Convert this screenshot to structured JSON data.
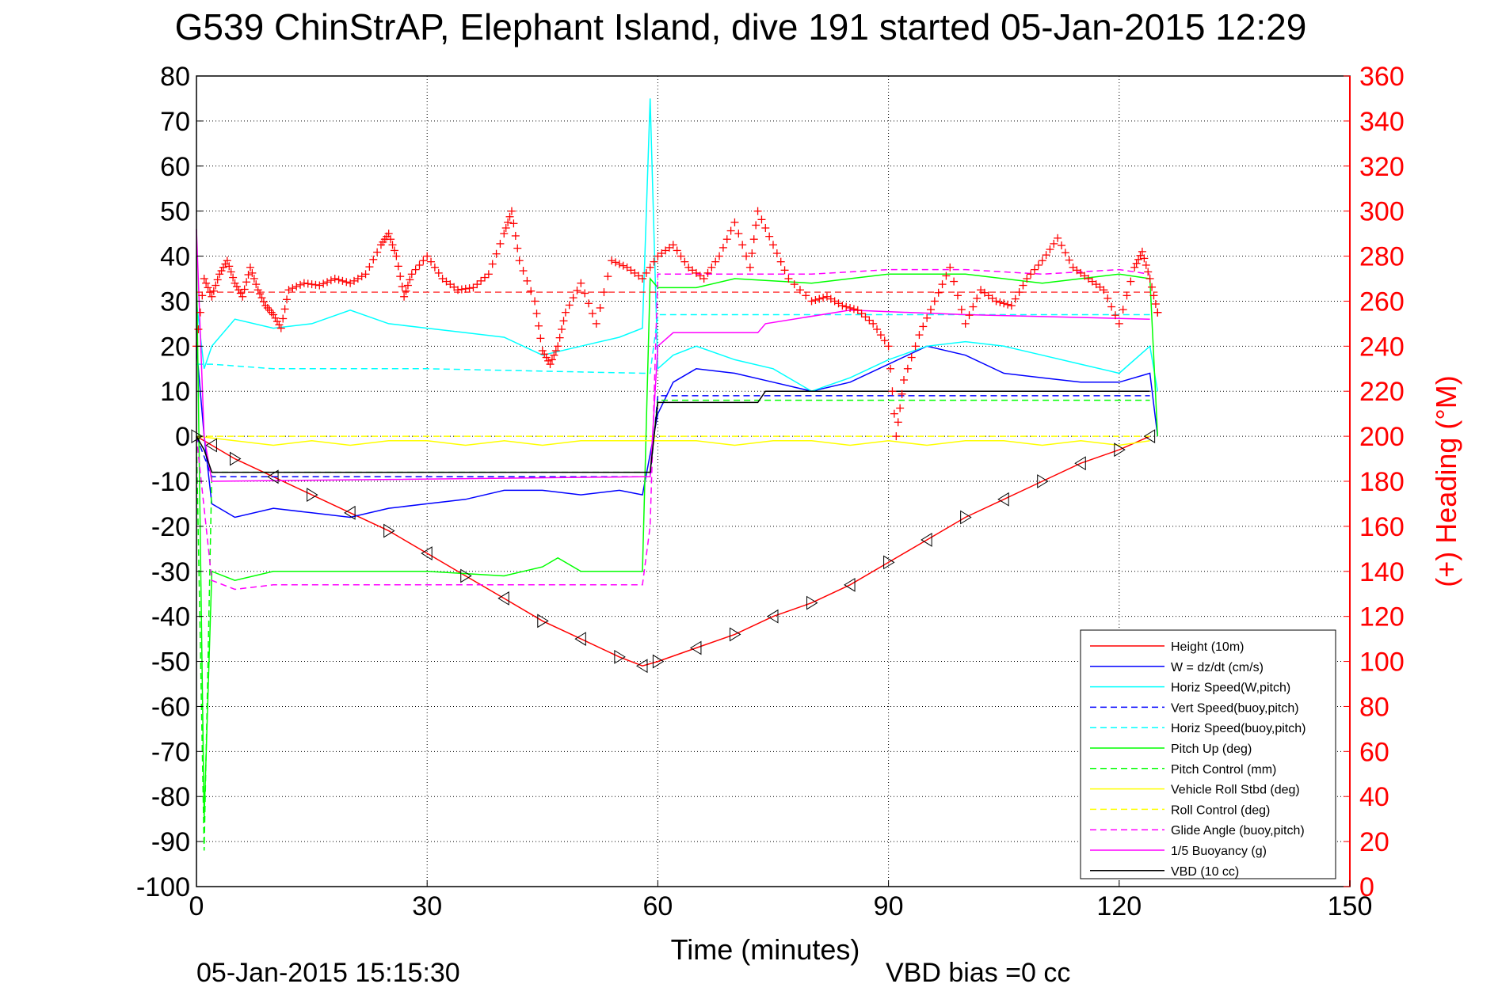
{
  "chart_data": {
    "type": "line",
    "title": "G539 ChinStrAP, Elephant Island, dive 191 started 05-Jan-2015 12:29",
    "xlabel": "Time (minutes)",
    "ylabel_right": "(+) Heading (°M)",
    "footer_left": "05-Jan-2015 15:15:30",
    "footer_right": "VBD bias =0 cc",
    "xlim": [
      0,
      150
    ],
    "ylim": [
      -100,
      80
    ],
    "ylim_right": [
      0,
      360
    ],
    "xticks": [
      "0",
      "30",
      "60",
      "90",
      "120",
      "150"
    ],
    "yticks": [
      "80",
      "70",
      "60",
      "50",
      "40",
      "30",
      "20",
      "10",
      "0",
      "-10",
      "-20",
      "-30",
      "-40",
      "-50",
      "-60",
      "-70",
      "-80",
      "-90",
      "-100"
    ],
    "yticks_right": [
      "360",
      "340",
      "320",
      "300",
      "280",
      "260",
      "240",
      "220",
      "200",
      "180",
      "160",
      "140",
      "120",
      "100",
      "80",
      "60",
      "40",
      "20",
      "0"
    ],
    "grid": true,
    "legend_position": "bottom-right",
    "series": [
      {
        "name": "Height (10m)",
        "color": "#ff0000",
        "style": "solid",
        "markers": "triangle",
        "x": [
          0,
          2,
          5,
          10,
          15,
          20,
          25,
          30,
          35,
          40,
          45,
          50,
          55,
          58,
          60,
          65,
          70,
          75,
          80,
          85,
          90,
          95,
          100,
          105,
          110,
          115,
          120,
          124
        ],
        "y": [
          0,
          -2,
          -5,
          -9,
          -13,
          -17,
          -21,
          -26,
          -31,
          -36,
          -41,
          -45,
          -49,
          -51,
          -50,
          -47,
          -44,
          -40,
          -37,
          -33,
          -28,
          -23,
          -18,
          -14,
          -10,
          -6,
          -3,
          0
        ]
      },
      {
        "name": "W = dz/dt (cm/s)",
        "color": "#0000ff",
        "style": "solid",
        "x": [
          0,
          1,
          2,
          5,
          10,
          15,
          20,
          25,
          30,
          35,
          40,
          45,
          50,
          55,
          58,
          60,
          62,
          65,
          70,
          75,
          80,
          85,
          90,
          95,
          100,
          105,
          110,
          115,
          120,
          124,
          125
        ],
        "y": [
          20,
          0,
          -15,
          -18,
          -16,
          -17,
          -18,
          -16,
          -15,
          -14,
          -12,
          -12,
          -13,
          -12,
          -13,
          5,
          12,
          15,
          14,
          12,
          10,
          12,
          16,
          20,
          18,
          14,
          13,
          12,
          12,
          14,
          0
        ]
      },
      {
        "name": "Horiz Speed(W,pitch)",
        "color": "#00ffff",
        "style": "solid",
        "x": [
          0,
          1,
          2,
          5,
          10,
          15,
          20,
          25,
          30,
          35,
          40,
          45,
          50,
          55,
          58,
          59,
          60,
          62,
          65,
          70,
          75,
          80,
          85,
          90,
          95,
          100,
          105,
          110,
          115,
          120,
          124,
          125
        ],
        "y": [
          30,
          15,
          20,
          26,
          24,
          25,
          28,
          25,
          24,
          23,
          22,
          18,
          20,
          22,
          24,
          75,
          15,
          18,
          20,
          17,
          15,
          10,
          13,
          17,
          20,
          21,
          20,
          18,
          16,
          14,
          20,
          10
        ]
      },
      {
        "name": "Vert Speed(buoy,pitch)",
        "color": "#0000ff",
        "style": "dashed",
        "x": [
          0,
          2,
          58,
          59,
          60,
          124
        ],
        "y": [
          0,
          -9,
          -9,
          -9,
          9,
          9
        ]
      },
      {
        "name": "Horiz Speed(buoy,pitch)",
        "color": "#00ffff",
        "style": "dashed",
        "x": [
          0,
          2,
          10,
          30,
          58,
          59,
          60,
          124
        ],
        "y": [
          16,
          16,
          15,
          15,
          14,
          14,
          27,
          27
        ]
      },
      {
        "name": "Pitch Up (deg)",
        "color": "#00ff00",
        "style": "solid",
        "x": [
          0,
          1,
          2,
          5,
          10,
          20,
          30,
          40,
          45,
          47,
          50,
          55,
          58,
          59,
          60,
          65,
          70,
          80,
          90,
          100,
          110,
          115,
          120,
          124,
          125
        ],
        "y": [
          40,
          -85,
          -30,
          -32,
          -30,
          -30,
          -30,
          -31,
          -29,
          -27,
          -30,
          -30,
          -30,
          35,
          33,
          33,
          35,
          34,
          36,
          36,
          34,
          35,
          36,
          35,
          0
        ]
      },
      {
        "name": "Pitch Control (mm)",
        "color": "#00ff00",
        "style": "dashed",
        "x": [
          0,
          1,
          2,
          58,
          59,
          60,
          124
        ],
        "y": [
          0,
          -92,
          -8,
          -8,
          -8,
          8,
          8
        ]
      },
      {
        "name": "Vehicle Roll Stbd (deg)",
        "color": "#ffff00",
        "style": "solid",
        "x": [
          0,
          5,
          10,
          15,
          20,
          25,
          30,
          35,
          40,
          45,
          50,
          55,
          60,
          65,
          70,
          75,
          80,
          85,
          90,
          95,
          100,
          105,
          110,
          115,
          120,
          124
        ],
        "y": [
          0,
          -1,
          -2,
          -1,
          -2,
          -1,
          -1,
          -2,
          -1,
          -2,
          -1,
          -1,
          -1,
          -1,
          -2,
          -1,
          -1,
          -2,
          -1,
          -2,
          -1,
          -1,
          -2,
          -1,
          -2,
          -1
        ]
      },
      {
        "name": "Roll Control (deg)",
        "color": "#ffff00",
        "style": "dashed",
        "x": [
          0,
          124
        ],
        "y": [
          0,
          0
        ]
      },
      {
        "name": "Glide Angle (buoy,pitch)",
        "color": "#ff00ff",
        "style": "dashed",
        "x": [
          0,
          2,
          5,
          10,
          20,
          30,
          40,
          50,
          58,
          59,
          60,
          65,
          70,
          80,
          90,
          100,
          110,
          120,
          124
        ],
        "y": [
          0,
          -32,
          -34,
          -33,
          -33,
          -33,
          -33,
          -33,
          -33,
          -20,
          36,
          36,
          36,
          36,
          37,
          37,
          36,
          37,
          36
        ]
      },
      {
        "name": "1/5 Buoyancy (g)",
        "color": "#ff00ff",
        "style": "solid",
        "x": [
          0,
          1,
          2,
          58,
          59,
          60,
          62,
          73,
          74,
          85,
          100,
          124
        ],
        "y": [
          46,
          0,
          -10,
          -9,
          -9,
          20,
          23,
          23,
          25,
          28,
          27,
          26
        ]
      },
      {
        "name": "VBD (10 cc)",
        "color": "#000000",
        "style": "solid",
        "x": [
          0,
          1,
          2,
          58,
          59,
          60,
          73,
          74,
          124
        ],
        "y": [
          0,
          -3,
          -8,
          -8,
          -8,
          7.5,
          7.5,
          10,
          10
        ]
      }
    ],
    "heading_series": {
      "name": "(+) Heading",
      "color": "#ff0000",
      "marker": "+",
      "reference_heading": 264,
      "x": [
        0,
        1,
        2,
        3,
        4,
        5,
        6,
        7,
        8,
        9,
        10,
        11,
        12,
        14,
        16,
        18,
        20,
        22,
        24,
        25,
        26,
        27,
        28,
        30,
        32,
        34,
        36,
        38,
        40,
        41,
        42,
        44,
        45,
        46,
        47,
        48,
        50,
        52,
        54,
        56,
        58,
        60,
        62,
        64,
        66,
        68,
        70,
        72,
        73,
        75,
        77,
        80,
        82,
        84,
        86,
        88,
        90,
        91,
        92,
        94,
        96,
        98,
        100,
        102,
        104,
        106,
        108,
        110,
        112,
        114,
        116,
        118,
        120,
        122,
        123,
        124,
        125
      ],
      "y": [
        240,
        270,
        262,
        272,
        278,
        268,
        262,
        275,
        265,
        258,
        254,
        248,
        265,
        268,
        267,
        270,
        268,
        272,
        285,
        290,
        280,
        262,
        272,
        280,
        270,
        265,
        266,
        272,
        290,
        300,
        278,
        260,
        238,
        232,
        240,
        255,
        268,
        250,
        278,
        275,
        270,
        280,
        285,
        275,
        270,
        280,
        295,
        275,
        300,
        285,
        270,
        260,
        262,
        258,
        256,
        250,
        240,
        200,
        225,
        245,
        260,
        275,
        250,
        265,
        260,
        258,
        270,
        278,
        288,
        275,
        270,
        265,
        250,
        275,
        282,
        270,
        255
      ]
    }
  }
}
